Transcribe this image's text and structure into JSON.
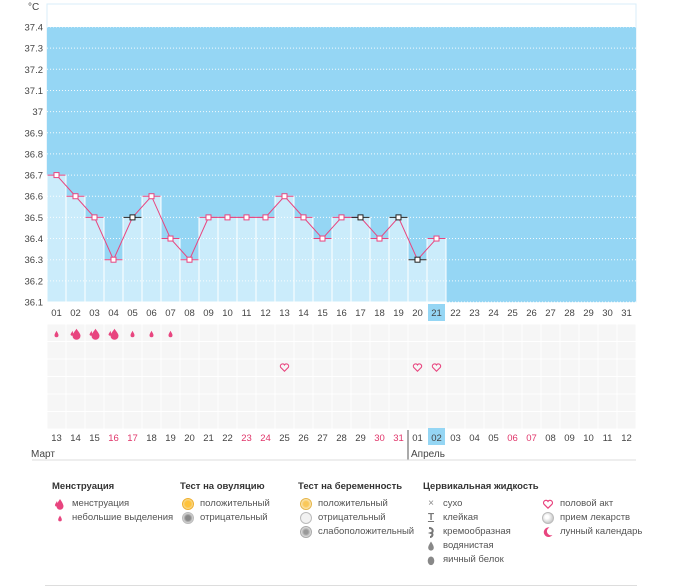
{
  "chart_data": {
    "type": "line",
    "y_unit": "°C",
    "ylim": [
      36.1,
      37.45
    ],
    "y_ticks": [
      "37.4",
      "37.3",
      "37.2",
      "37.1",
      "37",
      "36.9",
      "36.8",
      "36.7",
      "36.6",
      "36.5",
      "36.4",
      "36.3",
      "36.2",
      "36.1"
    ],
    "cycle_days": [
      "01",
      "02",
      "03",
      "04",
      "05",
      "06",
      "07",
      "08",
      "09",
      "10",
      "11",
      "12",
      "13",
      "14",
      "15",
      "16",
      "17",
      "18",
      "19",
      "20",
      "21",
      "22",
      "23",
      "24",
      "25",
      "26",
      "27",
      "28",
      "29",
      "30",
      "31"
    ],
    "today_index": 20,
    "temperatures": [
      36.7,
      36.6,
      36.5,
      36.3,
      36.5,
      36.6,
      36.4,
      36.3,
      36.5,
      36.5,
      36.5,
      36.5,
      36.6,
      36.5,
      36.4,
      36.5,
      36.5,
      36.4,
      36.5,
      36.3,
      36.4
    ],
    "marker_types": [
      "pink",
      "pink",
      "pink",
      "pink",
      "black",
      "pink",
      "pink",
      "pink",
      "pink",
      "pink",
      "pink",
      "pink",
      "pink",
      "pink",
      "pink",
      "pink",
      "black",
      "pink",
      "black",
      "black",
      "pink"
    ],
    "menstruation": [
      "small",
      "big",
      "big",
      "big",
      "small",
      "small",
      "small"
    ],
    "intercourse_days": [
      12,
      19,
      20
    ],
    "calendar_dates": [
      "13",
      "14",
      "15",
      "16",
      "17",
      "18",
      "19",
      "20",
      "21",
      "22",
      "23",
      "24",
      "25",
      "26",
      "27",
      "28",
      "29",
      "30",
      "31",
      "01",
      "02",
      "03",
      "04",
      "05",
      "06",
      "07",
      "08",
      "09",
      "10",
      "11",
      "12"
    ],
    "calendar_weekend": [
      false,
      false,
      false,
      true,
      true,
      false,
      false,
      false,
      false,
      false,
      true,
      true,
      false,
      false,
      false,
      false,
      false,
      true,
      true,
      false,
      false,
      false,
      false,
      false,
      true,
      true,
      false,
      false,
      false,
      false,
      false
    ],
    "today_date_index": 20,
    "month_start": "Март",
    "month_next": "Апрель",
    "month_break_index": 19,
    "colors": {
      "high_band": "#95d6f4",
      "bar_fill": "#cbecfb",
      "bar_edge": "#ffffff",
      "line": "#e8457f",
      "marker_pink": "#e8457f",
      "marker_black": "#222222",
      "grid_cell": "#f6f6f6",
      "weekend": "#e0356a",
      "today": "#95d6f4"
    }
  },
  "legend": {
    "menstruation": {
      "title": "Менструация",
      "items": [
        "менструация",
        "небольшие выделения"
      ]
    },
    "ovulation_test": {
      "title": "Тест на овуляцию",
      "items": [
        "положительный",
        "отрицательный"
      ]
    },
    "pregnancy_test": {
      "title": "Тест на беременность",
      "items": [
        "положительный",
        "отрицательный",
        "слабоположительный"
      ]
    },
    "cervical_fluid": {
      "title": "Цервикальная жидкость",
      "items": [
        "сухо",
        "клейкая",
        "кремообразная",
        "водянистая",
        "яичный белок"
      ]
    },
    "other": {
      "items": [
        "половой акт",
        "прием лекарств",
        "лунный календарь"
      ]
    }
  },
  "icons": [
    "drop-big-icon",
    "drop-small-icon",
    "sun-positive-icon",
    "sun-negative-icon",
    "test-positive-icon",
    "test-negative-icon",
    "test-weak-icon",
    "cross-icon",
    "t-icon",
    "curl-icon",
    "water-drop-icon",
    "egg-icon",
    "heart-icon",
    "pill-icon",
    "moon-icon"
  ]
}
